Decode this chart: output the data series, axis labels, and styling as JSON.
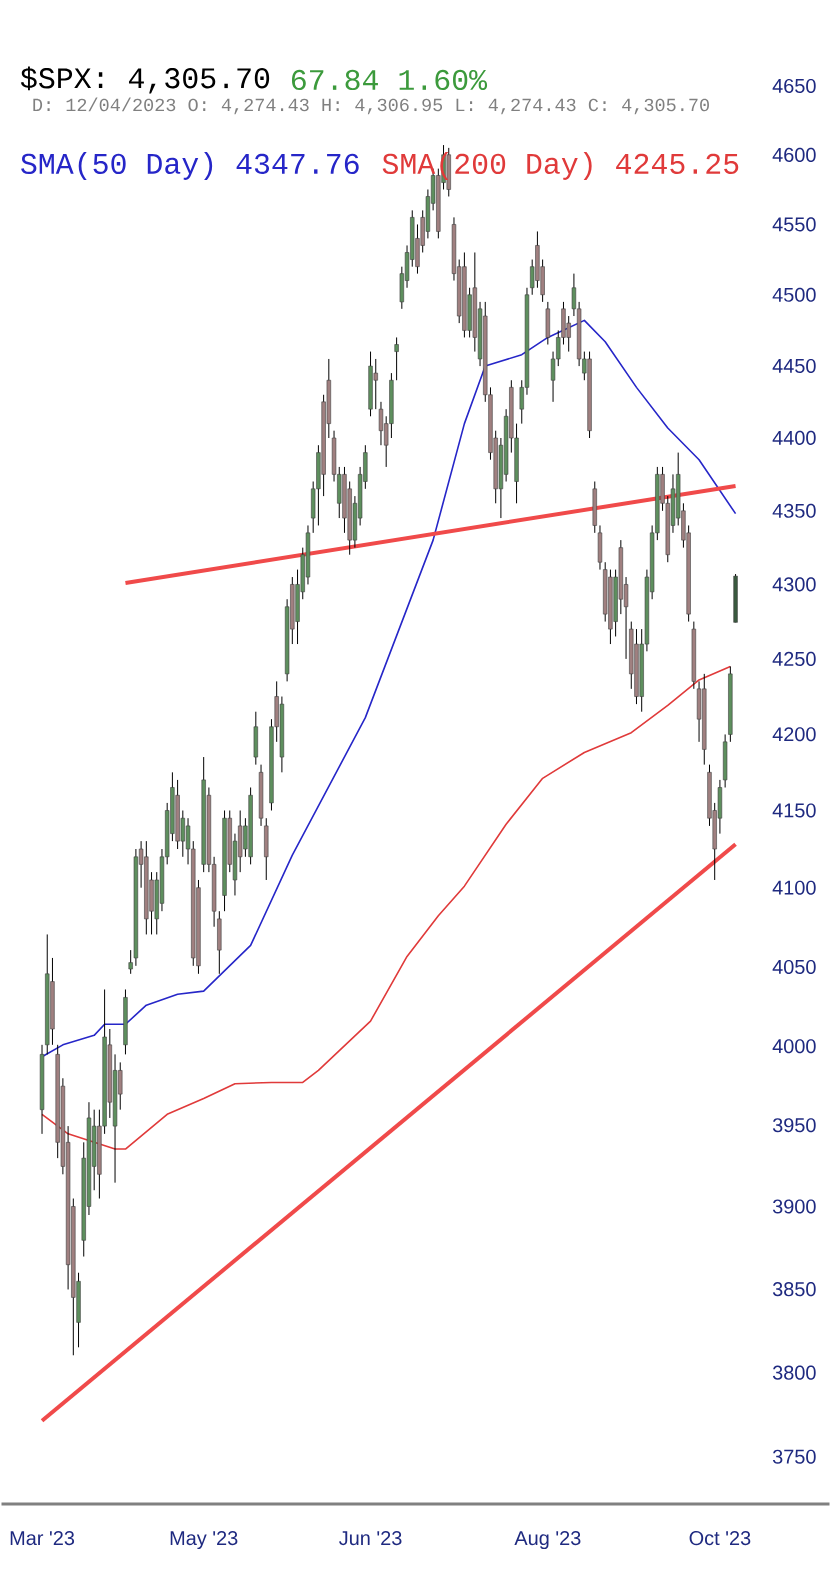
{
  "chart_data": {
    "type": "candlestick",
    "title": "$SPX: 4,305.70",
    "subtitle": "D: 12/04/2023 O: 4,274.43 H: 4,306.95 L: 4,274.43 C: 4,305.70",
    "annotations": [
      "67.84 1.60%"
    ],
    "categories": [
      "Mar '23",
      null,
      null,
      null,
      null,
      null,
      null,
      null,
      null,
      null,
      null,
      null,
      null,
      null,
      null,
      null,
      null,
      null,
      null,
      null,
      null,
      null,
      null,
      null,
      null,
      null,
      null,
      null,
      null,
      null,
      null,
      "May '23",
      null,
      null,
      null,
      null,
      null,
      null,
      null,
      null,
      null,
      null,
      null,
      null,
      null,
      null,
      null,
      null,
      null,
      null,
      null,
      null,
      null,
      null,
      null,
      null,
      null,
      null,
      null,
      null,
      null,
      null,
      null,
      "Jun '23",
      null,
      null,
      null,
      null,
      null,
      null,
      null,
      null,
      null,
      null,
      null,
      null,
      null,
      null,
      null,
      null,
      null,
      null,
      null,
      null,
      null,
      null,
      null,
      null,
      null,
      null,
      null,
      null,
      null,
      null,
      null,
      null,
      null,
      "Aug '23",
      null,
      null,
      null,
      null,
      null,
      null,
      null,
      null,
      null,
      null,
      null,
      null,
      null,
      null,
      null,
      null,
      null,
      null,
      null,
      null,
      null,
      null,
      null,
      null,
      null,
      null,
      null,
      null,
      null,
      null,
      null,
      null,
      "Oct '23",
      null,
      null,
      null
    ],
    "ohlc": [
      [
        3960,
        4000,
        3945,
        3995
      ],
      [
        4000,
        4070,
        3995,
        4045
      ],
      [
        4040,
        4055,
        4000,
        4010
      ],
      [
        3995,
        4000,
        3930,
        3940
      ],
      [
        3975,
        3980,
        3920,
        3925
      ],
      [
        3940,
        3950,
        3850,
        3865
      ],
      [
        3900,
        3905,
        3810,
        3845
      ],
      [
        3830,
        3860,
        3815,
        3855
      ],
      [
        3880,
        3940,
        3870,
        3930
      ],
      [
        3900,
        3965,
        3895,
        3955
      ],
      [
        3925,
        3960,
        3910,
        3950
      ],
      [
        3950,
        3960,
        3905,
        3920
      ],
      [
        3950,
        4035,
        3945,
        4005
      ],
      [
        4000,
        4010,
        3955,
        3965
      ],
      [
        3950,
        3995,
        3915,
        3985
      ],
      [
        3985,
        3990,
        3960,
        3970
      ],
      [
        4000,
        4035,
        3995,
        4030
      ],
      [
        4048,
        4060,
        4045,
        4052
      ],
      [
        4055,
        4125,
        4050,
        4120
      ],
      [
        4125,
        4130,
        4100,
        4115
      ],
      [
        4120,
        4130,
        4070,
        4080
      ],
      [
        4105,
        4110,
        4070,
        4085
      ],
      [
        4080,
        4110,
        4070,
        4105
      ],
      [
        4090,
        4125,
        4085,
        4120
      ],
      [
        4120,
        4155,
        4115,
        4150
      ],
      [
        4135,
        4175,
        4130,
        4165
      ],
      [
        4160,
        4170,
        4125,
        4130
      ],
      [
        4130,
        4150,
        4120,
        4145
      ],
      [
        4125,
        4145,
        4115,
        4140
      ],
      [
        4125,
        4130,
        4050,
        4055
      ],
      [
        4100,
        4105,
        4045,
        4050
      ],
      [
        4115,
        4185,
        4110,
        4170
      ],
      [
        4160,
        4165,
        4110,
        4115
      ],
      [
        4115,
        4120,
        4075,
        4085
      ],
      [
        4080,
        4085,
        4045,
        4060
      ],
      [
        4095,
        4150,
        4085,
        4145
      ],
      [
        4145,
        4150,
        4110,
        4115
      ],
      [
        4105,
        4135,
        4095,
        4130
      ],
      [
        4140,
        4150,
        4110,
        4120
      ],
      [
        4125,
        4145,
        4120,
        4140
      ],
      [
        4120,
        4165,
        4115,
        4160
      ],
      [
        4185,
        4215,
        4180,
        4205
      ],
      [
        4175,
        4180,
        4140,
        4145
      ],
      [
        4140,
        4145,
        4105,
        4120
      ],
      [
        4155,
        4210,
        4150,
        4205
      ],
      [
        4225,
        4235,
        4195,
        4205
      ],
      [
        4185,
        4225,
        4175,
        4220
      ],
      [
        4240,
        4290,
        4235,
        4285
      ],
      [
        4300,
        4305,
        4260,
        4270
      ],
      [
        4275,
        4310,
        4260,
        4300
      ],
      [
        4295,
        4325,
        4290,
        4320
      ],
      [
        4305,
        4340,
        4300,
        4335
      ],
      [
        4345,
        4370,
        4335,
        4365
      ],
      [
        4365,
        4395,
        4340,
        4390
      ],
      [
        4425,
        4430,
        4360,
        4375
      ],
      [
        4440,
        4455,
        4400,
        4410
      ],
      [
        4400,
        4405,
        4370,
        4375
      ],
      [
        4355,
        4380,
        4345,
        4375
      ],
      [
        4375,
        4380,
        4335,
        4345
      ],
      [
        4365,
        4370,
        4320,
        4330
      ],
      [
        4330,
        4360,
        4325,
        4355
      ],
      [
        4345,
        4380,
        4340,
        4375
      ],
      [
        4370,
        4395,
        4365,
        4390
      ],
      [
        4420,
        4460,
        4415,
        4450
      ],
      [
        4445,
        4455,
        4420,
        4440
      ],
      [
        4420,
        4425,
        4395,
        4405
      ],
      [
        4410,
        4415,
        4380,
        4395
      ],
      [
        4410,
        4445,
        4400,
        4440
      ],
      [
        4460,
        4470,
        4440,
        4465
      ],
      [
        4495,
        4520,
        4490,
        4515
      ],
      [
        4510,
        4535,
        4505,
        4530
      ],
      [
        4525,
        4560,
        4520,
        4555
      ],
      [
        4540,
        4550,
        4515,
        4520
      ],
      [
        4555,
        4560,
        4530,
        4535
      ],
      [
        4545,
        4575,
        4540,
        4570
      ],
      [
        4565,
        4590,
        4560,
        4585
      ],
      [
        4585,
        4590,
        4540,
        4545
      ],
      [
        4580,
        4607,
        4575,
        4600
      ],
      [
        4600,
        4605,
        4570,
        4575
      ],
      [
        4550,
        4555,
        4510,
        4515
      ],
      [
        4520,
        4525,
        4480,
        4485
      ],
      [
        4520,
        4530,
        4470,
        4475
      ],
      [
        4475,
        4505,
        4470,
        4500
      ],
      [
        4505,
        4530,
        4460,
        4470
      ],
      [
        4455,
        4495,
        4450,
        4490
      ],
      [
        4485,
        4495,
        4425,
        4430
      ],
      [
        4430,
        4435,
        4385,
        4390
      ],
      [
        4400,
        4405,
        4355,
        4365
      ],
      [
        4365,
        4400,
        4345,
        4395
      ],
      [
        4375,
        4420,
        4370,
        4415
      ],
      [
        4435,
        4440,
        4390,
        4400
      ],
      [
        4370,
        4410,
        4355,
        4400
      ],
      [
        4420,
        4440,
        4410,
        4435
      ],
      [
        4435,
        4505,
        4430,
        4500
      ],
      [
        4505,
        4525,
        4500,
        4520
      ],
      [
        4535,
        4545,
        4505,
        4510
      ],
      [
        4520,
        4525,
        4495,
        4500
      ],
      [
        4490,
        4495,
        4465,
        4470
      ],
      [
        4440,
        4460,
        4425,
        4455
      ],
      [
        4455,
        4475,
        4450,
        4470
      ],
      [
        4490,
        4495,
        4465,
        4470
      ],
      [
        4480,
        4485,
        4460,
        4470
      ],
      [
        4490,
        4515,
        4485,
        4505
      ],
      [
        4490,
        4495,
        4450,
        4455
      ],
      [
        4445,
        4460,
        4440,
        4455
      ],
      [
        4455,
        4460,
        4400,
        4405
      ],
      [
        4365,
        4370,
        4335,
        4340
      ],
      [
        4335,
        4340,
        4310,
        4315
      ],
      [
        4310,
        4315,
        4275,
        4280
      ],
      [
        4305,
        4310,
        4260,
        4270
      ],
      [
        4275,
        4310,
        4265,
        4305
      ],
      [
        4325,
        4330,
        4280,
        4290
      ],
      [
        4300,
        4305,
        4250,
        4285
      ],
      [
        4270,
        4275,
        4230,
        4240
      ],
      [
        4260,
        4270,
        4220,
        4225
      ],
      [
        4225,
        4270,
        4215,
        4260
      ],
      [
        4260,
        4310,
        4255,
        4305
      ],
      [
        4295,
        4340,
        4290,
        4335
      ],
      [
        4335,
        4380,
        4330,
        4375
      ],
      [
        4375,
        4380,
        4350,
        4355
      ],
      [
        4355,
        4360,
        4315,
        4320
      ],
      [
        4340,
        4375,
        4335,
        4365
      ],
      [
        4345,
        4390,
        4340,
        4375
      ],
      [
        4350,
        4355,
        4325,
        4330
      ],
      [
        4335,
        4340,
        4275,
        4280
      ],
      [
        4270,
        4275,
        4230,
        4235
      ],
      [
        4230,
        4235,
        4195,
        4210
      ],
      [
        4230,
        4240,
        4180,
        4190
      ],
      [
        4175,
        4180,
        4140,
        4145
      ],
      [
        4150,
        4155,
        4105,
        4125
      ],
      [
        4145,
        4170,
        4135,
        4165
      ],
      [
        4170,
        4200,
        4165,
        4195
      ],
      [
        4200,
        4245,
        4195,
        4240
      ],
      [
        4274.43,
        4306.95,
        4274.43,
        4305.7
      ]
    ],
    "colors": [
      "#5e8f5e",
      "#5e8f5e",
      "#a08080",
      "#a08080",
      "#a08080",
      "#a08080",
      "#a08080",
      "#5e8f5e",
      "#5e8f5e",
      "#5e8f5e",
      "#5e8f5e",
      "#a08080",
      "#5e8f5e",
      "#a08080",
      "#5e8f5e",
      "#a08080",
      "#5e8f5e",
      "#5e8f5e",
      "#5e8f5e",
      "#a08080",
      "#a08080",
      "#a08080",
      "#5e8f5e",
      "#5e8f5e",
      "#5e8f5e",
      "#5e8f5e",
      "#a08080",
      "#5e8f5e",
      "#5e8f5e",
      "#a08080",
      "#a08080",
      "#5e8f5e",
      "#a08080",
      "#a08080",
      "#a08080",
      "#5e8f5e",
      "#a08080",
      "#5e8f5e",
      "#a08080",
      "#5e8f5e",
      "#5e8f5e",
      "#5e8f5e",
      "#a08080",
      "#a08080",
      "#5e8f5e",
      "#a08080",
      "#5e8f5e",
      "#5e8f5e",
      "#a08080",
      "#5e8f5e",
      "#5e8f5e",
      "#5e8f5e",
      "#5e8f5e",
      "#5e8f5e",
      "#a08080",
      "#a08080",
      "#a08080",
      "#5e8f5e",
      "#a08080",
      "#a08080",
      "#5e8f5e",
      "#5e8f5e",
      "#5e8f5e",
      "#5e8f5e",
      "#a08080",
      "#a08080",
      "#a08080",
      "#5e8f5e",
      "#5e8f5e",
      "#5e8f5e",
      "#5e8f5e",
      "#5e8f5e",
      "#a08080",
      "#a08080",
      "#5e8f5e",
      "#5e8f5e",
      "#a08080",
      "#5e8f5e",
      "#a08080",
      "#a08080",
      "#a08080",
      "#a08080",
      "#5e8f5e",
      "#a08080",
      "#5e8f5e",
      "#a08080",
      "#a08080",
      "#a08080",
      "#5e8f5e",
      "#5e8f5e",
      "#a08080",
      "#5e8f5e",
      "#5e8f5e",
      "#5e8f5e",
      "#5e8f5e",
      "#a08080",
      "#a08080",
      "#a08080",
      "#5e8f5e",
      "#5e8f5e",
      "#a08080",
      "#a08080",
      "#5e8f5e",
      "#a08080",
      "#5e8f5e",
      "#a08080",
      "#a08080",
      "#a08080",
      "#a08080",
      "#a08080",
      "#5e8f5e",
      "#a08080",
      "#a08080",
      "#a08080",
      "#a08080",
      "#5e8f5e",
      "#5e8f5e",
      "#5e8f5e",
      "#5e8f5e",
      "#a08080",
      "#a08080",
      "#5e8f5e",
      "#5e8f5e",
      "#a08080",
      "#a08080",
      "#a08080",
      "#a08080",
      "#a08080",
      "#a08080",
      "#a08080",
      "#5e8f5e",
      "#5e8f5e",
      "#5e8f5e",
      "#3a5a3f"
    ],
    "series": [
      {
        "type": "line",
        "name": "SMA(50 Day) 4347.76",
        "color": "#2626c8",
        "values": [
          3993,
          null,
          null,
          null,
          4000,
          null,
          null,
          null,
          null,
          null,
          4006,
          null,
          4013,
          null,
          null,
          null,
          4013,
          null,
          null,
          null,
          4025,
          null,
          null,
          null,
          null,
          null,
          4032,
          null,
          null,
          null,
          null,
          4034,
          null,
          null,
          null,
          null,
          null,
          null,
          null,
          null,
          4063,
          null,
          null,
          null,
          null,
          null,
          null,
          null,
          4121,
          null,
          null,
          null,
          null,
          null,
          null,
          null,
          null,
          null,
          null,
          null,
          null,
          null,
          4211,
          null,
          null,
          null,
          null,
          null,
          null,
          null,
          null,
          null,
          null,
          null,
          null,
          4330,
          null,
          null,
          null,
          null,
          null,
          4410,
          null,
          null,
          null,
          4450,
          null,
          null,
          null,
          null,
          null,
          null,
          4458,
          null,
          null,
          null,
          null,
          4470,
          null,
          null,
          null,
          null,
          null,
          null,
          4482,
          null,
          null,
          null,
          4467,
          null,
          null,
          null,
          null,
          null,
          4435,
          null,
          null,
          null,
          null,
          null,
          4407,
          null,
          null,
          null,
          null,
          null,
          4385,
          null,
          null,
          null,
          null,
          null,
          null,
          4348
        ]
      },
      {
        "type": "line",
        "name": "SMA(200 Day) 4245.25",
        "color": "#e03a3a",
        "values": [
          3957,
          null,
          null,
          null,
          null,
          3945,
          null,
          null,
          null,
          null,
          null,
          null,
          null,
          null,
          3936,
          null,
          3936,
          null,
          null,
          null,
          null,
          null,
          null,
          null,
          3957,
          null,
          null,
          null,
          null,
          null,
          null,
          3967,
          null,
          null,
          null,
          null,
          null,
          3976,
          null,
          null,
          null,
          null,
          null,
          null,
          3977,
          null,
          null,
          null,
          null,
          null,
          3977,
          null,
          null,
          3985,
          null,
          null,
          null,
          null,
          null,
          null,
          null,
          null,
          null,
          4015,
          null,
          null,
          null,
          null,
          null,
          null,
          4056,
          null,
          null,
          null,
          null,
          null,
          4082,
          null,
          null,
          null,
          null,
          4101,
          null,
          null,
          null,
          null,
          null,
          null,
          null,
          4141,
          null,
          null,
          null,
          null,
          null,
          null,
          4171,
          null,
          null,
          null,
          null,
          null,
          null,
          null,
          4188,
          null,
          null,
          null,
          null,
          null,
          null,
          null,
          null,
          4201,
          null,
          null,
          null,
          null,
          null,
          null,
          4219,
          null,
          null,
          null,
          null,
          null,
          4236,
          null,
          null,
          null,
          null,
          null,
          4245,
          null
        ]
      },
      {
        "type": "line",
        "color": "#f04a4a",
        "values": [
          null,
          null,
          null,
          null,
          null,
          null,
          null,
          null,
          null,
          null,
          null,
          null,
          null,
          null,
          null,
          null,
          4301,
          null,
          null,
          null,
          null,
          null,
          null,
          null,
          null,
          null,
          null,
          null,
          null,
          null,
          null,
          null,
          null,
          null,
          null,
          null,
          null,
          null,
          null,
          null,
          null,
          null,
          null,
          null,
          null,
          null,
          null,
          null,
          null,
          null,
          null,
          null,
          null,
          null,
          null,
          null,
          null,
          null,
          null,
          null,
          null,
          null,
          null,
          null,
          null,
          null,
          null,
          null,
          null,
          null,
          null,
          null,
          null,
          null,
          null,
          null,
          null,
          null,
          null,
          null,
          null,
          null,
          null,
          null,
          null,
          null,
          null,
          null,
          null,
          null,
          null,
          null,
          null,
          null,
          null,
          null,
          null,
          null,
          null,
          null,
          null,
          null,
          null,
          null,
          null,
          null,
          null,
          null,
          null,
          null,
          null,
          null,
          null,
          null,
          null,
          null,
          null,
          null,
          null,
          null,
          null,
          null,
          null,
          null,
          null,
          null,
          null,
          null,
          null,
          null,
          null,
          null,
          null,
          4367
        ]
      },
      {
        "type": "line",
        "color": "#f04a4a",
        "values": [
          3771,
          null,
          null,
          null,
          null,
          null,
          null,
          null,
          null,
          null,
          null,
          null,
          null,
          null,
          null,
          null,
          null,
          null,
          null,
          null,
          null,
          null,
          null,
          null,
          null,
          null,
          null,
          null,
          null,
          null,
          null,
          null,
          null,
          null,
          null,
          null,
          null,
          null,
          null,
          null,
          null,
          null,
          null,
          null,
          null,
          null,
          null,
          null,
          null,
          null,
          null,
          null,
          null,
          null,
          null,
          null,
          null,
          null,
          null,
          null,
          null,
          null,
          null,
          null,
          null,
          null,
          null,
          null,
          null,
          null,
          null,
          null,
          null,
          null,
          null,
          null,
          null,
          null,
          null,
          null,
          null,
          null,
          null,
          null,
          null,
          null,
          null,
          null,
          null,
          null,
          null,
          null,
          null,
          null,
          null,
          null,
          null,
          null,
          null,
          null,
          null,
          null,
          null,
          null,
          null,
          null,
          null,
          null,
          null,
          null,
          null,
          null,
          null,
          null,
          null,
          null,
          null,
          null,
          null,
          null,
          null,
          null,
          null,
          null,
          null,
          null,
          null,
          null,
          null,
          null,
          null,
          null,
          null,
          4128
        ]
      }
    ],
    "ylim": [
      3722,
      4650
    ],
    "yticks": [
      3750,
      3800,
      3850,
      3900,
      3950,
      4000,
      4050,
      4100,
      4150,
      4200,
      4250,
      4300,
      4350,
      4400,
      4450,
      4500,
      4550,
      4600,
      4650
    ],
    "log": "y",
    "legend": "top left"
  }
}
